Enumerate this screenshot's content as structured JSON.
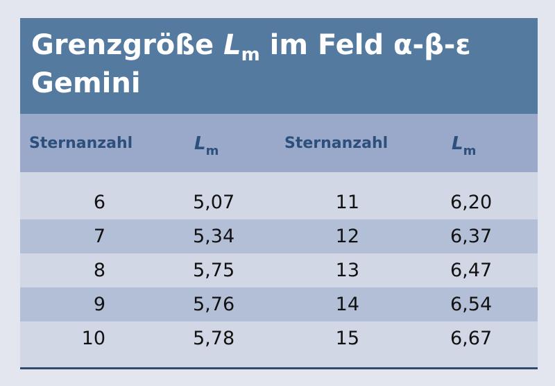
{
  "title": {
    "part1": "Grenzgröße ",
    "lm_symbol": "L",
    "lm_sub": "m",
    "part2": " im Feld α-β-ε",
    "line2": "Gemini"
  },
  "headers": {
    "col1": "Sternanzahl",
    "col2_symbol": "L",
    "col2_sub": "m",
    "col3": "Sternanzahl",
    "col4_symbol": "L",
    "col4_sub": "m"
  },
  "rows": [
    {
      "n1": "6",
      "lm1": "5,07",
      "n2": "11",
      "lm2": "6,20"
    },
    {
      "n1": "7",
      "lm1": "5,34",
      "n2": "12",
      "lm2": "6,37"
    },
    {
      "n1": "8",
      "lm1": "5,75",
      "n2": "13",
      "lm2": "6,47"
    },
    {
      "n1": "9",
      "lm1": "5,76",
      "n2": "14",
      "lm2": "6,54"
    },
    {
      "n1": "10",
      "lm1": "5,78",
      "n2": "15",
      "lm2": "6,67"
    }
  ],
  "colors": {
    "page_background": "#e3e6ef",
    "title_bar": "#557aa0",
    "header_row": "#9aa9c9",
    "header_text": "#2c4f7c",
    "row_light": "#d2d7e5",
    "row_dark": "#b3bfd7",
    "bottom_rule": "#2e4a6d"
  }
}
